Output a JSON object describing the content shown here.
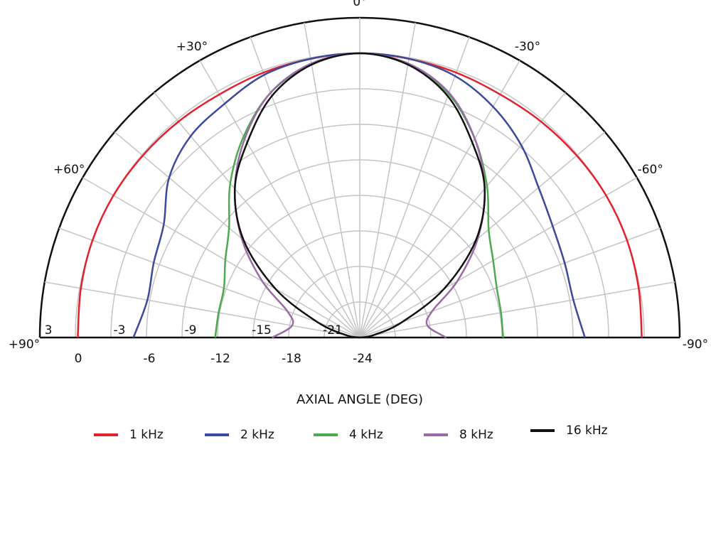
{
  "chart_data": {
    "type": "polar",
    "x_label": "AXIAL ANGLE (DEG)",
    "x": [
      90,
      80,
      70,
      60,
      50,
      40,
      30,
      20,
      10,
      0,
      -10,
      -20,
      -30,
      -40,
      -50,
      -60,
      -70,
      -80,
      -90
    ],
    "xticks": [
      {
        "value": 90,
        "label": "+90°"
      },
      {
        "value": 60,
        "label": "+60°"
      },
      {
        "value": 30,
        "label": "+30°"
      },
      {
        "value": 0,
        "label": "0°"
      },
      {
        "value": -30,
        "label": "-30°"
      },
      {
        "value": -60,
        "label": "-60°"
      },
      {
        "value": -90,
        "label": "-90°"
      }
    ],
    "ylim": [
      -24,
      3
    ],
    "yticks": [
      3,
      0,
      -3,
      -6,
      -9,
      -12,
      -15,
      -18,
      -21,
      -24
    ],
    "grid": true,
    "series": [
      {
        "name": "1 kHz",
        "color": "#e3212d",
        "values": [
          -0.2,
          -0.1,
          0,
          0,
          -0.1,
          -0.2,
          -0.3,
          -0.2,
          -0.1,
          0,
          -0.1,
          -0.2,
          -0.3,
          -0.2,
          -0.1,
          0,
          0,
          -0.1,
          -0.2
        ]
      },
      {
        "name": "2 kHz",
        "color": "#3b4a9a",
        "values": [
          -4.9,
          -5.8,
          -5.5,
          -4.9,
          -3.0,
          -1.8,
          -1.2,
          -0.4,
          -0.1,
          0,
          -0.1,
          -0.5,
          -1.5,
          -2.8,
          -4.3,
          -5.2,
          -5.6,
          -5.7,
          -5.0
        ]
      },
      {
        "name": "4 kHz",
        "color": "#4caa4f",
        "values": [
          -11.8,
          -11.9,
          -11.8,
          -10.9,
          -9.6,
          -7.0,
          -4.4,
          -2.0,
          -0.6,
          0,
          -0.6,
          -2.1,
          -4.6,
          -7.3,
          -9.8,
          -11.0,
          -11.7,
          -11.9,
          -11.9
        ]
      },
      {
        "name": "8 kHz",
        "color": "#9c6aa8",
        "values": [
          -16.6,
          -18.2,
          -17.5,
          -14.5,
          -11.0,
          -7.6,
          -4.6,
          -2.0,
          -0.5,
          0,
          -0.5,
          -2.0,
          -4.6,
          -7.6,
          -11.0,
          -14.5,
          -17.5,
          -18.2,
          -16.7
        ]
      },
      {
        "name": "16 kHz",
        "color": "#111111",
        "values": [
          -24,
          -22.8,
          -20.2,
          -15.8,
          -11.2,
          -7.6,
          -5.0,
          -2.3,
          -0.6,
          0,
          -0.6,
          -2.3,
          -5.0,
          -7.6,
          -11.2,
          -15.8,
          -20.2,
          -22.8,
          -24
        ]
      }
    ]
  }
}
